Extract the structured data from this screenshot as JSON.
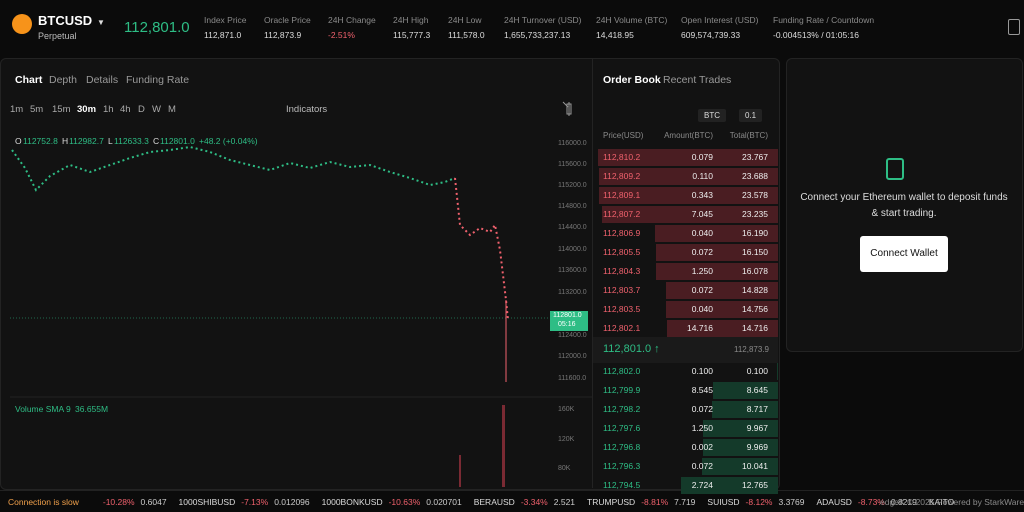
{
  "header": {
    "symbol": "BTCUSD",
    "market": "Perpetual",
    "price": "112,801.0",
    "stats": [
      {
        "label": "Index Price",
        "value": "112,871.0"
      },
      {
        "label": "Oracle Price",
        "value": "112,873.9"
      },
      {
        "label": "24H Change",
        "value": "-2.51%"
      },
      {
        "label": "24H High",
        "value": "115,777.3"
      },
      {
        "label": "24H Low",
        "value": "111,578.0"
      },
      {
        "label": "24H Turnover (USD)",
        "value": "1,655,733,237.13"
      },
      {
        "label": "24H Volume (BTC)",
        "value": "14,418.95"
      },
      {
        "label": "Open Interest (USD)",
        "value": "609,574,739.33"
      },
      {
        "label": "Funding Rate / Countdown",
        "value": "-0.004513% / 01:05:16"
      }
    ]
  },
  "chart_panel": {
    "tabs": [
      "Chart",
      "Depth",
      "Details",
      "Funding Rate"
    ],
    "intervals": [
      "1m",
      "5m",
      "15m",
      "30m",
      "1h",
      "4h",
      "D",
      "W",
      "M"
    ],
    "indicators": "Indicators",
    "ohlc": [
      {
        "key": "O",
        "value": "112752.8"
      },
      {
        "key": "H",
        "value": "112982.7"
      },
      {
        "key": "L",
        "value": "112633.3"
      },
      {
        "key": "C",
        "value": "112801.0"
      }
    ],
    "change": "+48.2 (+0.04%)",
    "price_axis": [
      "116000.0",
      "115600.0",
      "115200.0",
      "114800.0",
      "114400.0",
      "114000.0",
      "113600.0",
      "113200.0",
      "112400.0",
      "112000.0",
      "111600.0"
    ],
    "last_price": "112801.0",
    "countdown": "05:16",
    "volume_label": "Volume SMA 9",
    "volume_value": "36.655M",
    "volume_axis": [
      "160K",
      "120K",
      "80K"
    ]
  },
  "order_book": {
    "tabs": [
      "Order Book",
      "Recent Trades"
    ],
    "unit": "BTC",
    "step": "0.1",
    "columns": [
      "Price(USD)",
      "Amount(BTC)",
      "Total(BTC)"
    ],
    "asks": [
      [
        "112,810.2",
        "0.079",
        "23.767"
      ],
      [
        "112,809.2",
        "0.110",
        "23.688"
      ],
      [
        "112,809.1",
        "0.343",
        "23.578"
      ],
      [
        "112,807.2",
        "7.045",
        "23.235"
      ],
      [
        "112,806.9",
        "0.040",
        "16.190"
      ],
      [
        "112,805.5",
        "0.072",
        "16.150"
      ],
      [
        "112,804.3",
        "1.250",
        "16.078"
      ],
      [
        "112,803.7",
        "0.072",
        "14.828"
      ],
      [
        "112,803.5",
        "0.040",
        "14.756"
      ],
      [
        "112,802.1",
        "14.716",
        "14.716"
      ]
    ],
    "mid_price": "112,801.0 ↑",
    "mark_price": "112,873.9",
    "bids": [
      [
        "112,802.0",
        "0.100",
        "0.100"
      ],
      [
        "112,799.9",
        "8.545",
        "8.645"
      ],
      [
        "112,798.2",
        "0.072",
        "8.717"
      ],
      [
        "112,797.6",
        "1.250",
        "9.967"
      ],
      [
        "112,796.8",
        "0.002",
        "9.969"
      ],
      [
        "112,796.3",
        "0.072",
        "10.041"
      ],
      [
        "112,794.5",
        "2.724",
        "12.765"
      ]
    ]
  },
  "wallet": {
    "message": "Connect your Ethereum wallet to deposit funds & start trading.",
    "button": "Connect Wallet"
  },
  "footer": {
    "status": "Connection is slow",
    "ticker": [
      {
        "change": "-10.28%",
        "price": "0.6047"
      },
      {
        "name": "1000SHIBUSD",
        "change": "-7.13%",
        "price": "0.012096"
      },
      {
        "name": "1000BONKUSD",
        "change": "-10.63%",
        "price": "0.020701"
      },
      {
        "name": "BERAUSD",
        "change": "-3.34%",
        "price": "2.521"
      },
      {
        "name": "TRUMPUSD",
        "change": "-8.81%",
        "price": "7.719"
      },
      {
        "name": "SUIUSD",
        "change": "-8.12%",
        "price": "3.3769"
      },
      {
        "name": "ADAUSD",
        "change": "-8.73%",
        "price": "0.8219"
      },
      {
        "name": "KAITO"
      }
    ],
    "copyright": "edgeX © 2025",
    "powered": "Powered by StarkWare"
  }
}
